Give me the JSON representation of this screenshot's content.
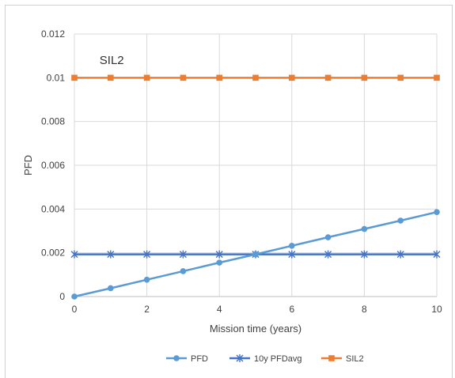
{
  "chart_data": {
    "type": "line",
    "title": "",
    "xlabel": "Mission time (years)",
    "ylabel": "PFD",
    "xlim": [
      0,
      10
    ],
    "ylim": [
      0,
      0.012
    ],
    "grid": true,
    "legend_position": "bottom",
    "x": [
      0,
      1,
      2,
      3,
      4,
      5,
      6,
      7,
      8,
      9,
      10
    ],
    "x_ticks": [
      "0",
      "2",
      "4",
      "6",
      "8",
      "10"
    ],
    "y_ticks": [
      "0",
      "0.002",
      "0.004",
      "0.006",
      "0.008",
      "0.01",
      "0.012"
    ],
    "annotations": [
      {
        "text": "SIL2",
        "x": 1,
        "y": 0.0108
      }
    ],
    "series": [
      {
        "name": "PFD",
        "color": "#5B9BD5",
        "marker": "circle",
        "values": [
          0,
          0.00038,
          0.00077,
          0.00116,
          0.00155,
          0.00193,
          0.00232,
          0.00271,
          0.00309,
          0.00347,
          0.00386
        ]
      },
      {
        "name": "10y PFDavg",
        "color": "#4472C4",
        "marker": "star",
        "values": [
          0.00193,
          0.00193,
          0.00193,
          0.00193,
          0.00193,
          0.00193,
          0.00193,
          0.00193,
          0.00193,
          0.00193,
          0.00193
        ]
      },
      {
        "name": "SIL2",
        "color": "#ED7D31",
        "marker": "square",
        "values": [
          0.01,
          0.01,
          0.01,
          0.01,
          0.01,
          0.01,
          0.01,
          0.01,
          0.01,
          0.01,
          0.01
        ]
      }
    ]
  }
}
